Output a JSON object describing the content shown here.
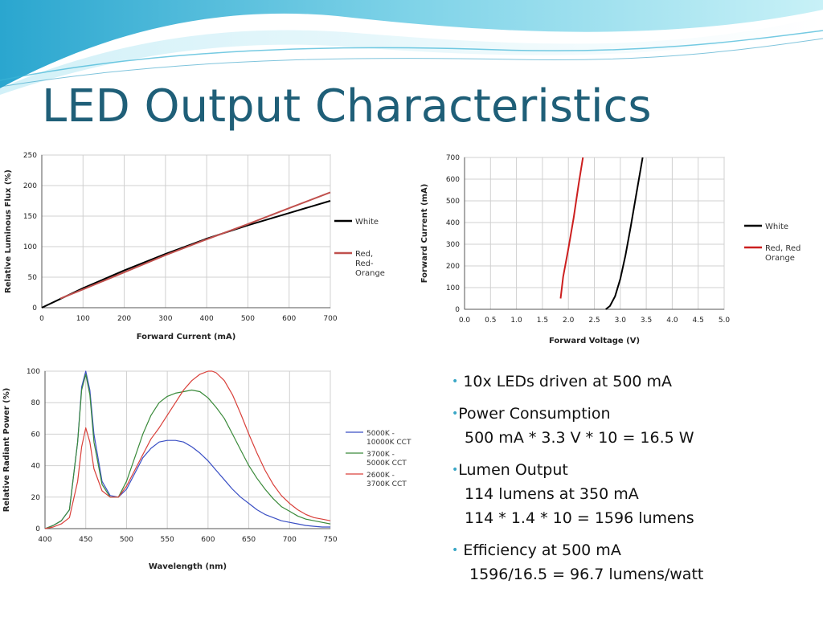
{
  "slide": {
    "title": "LED Output Characteristics",
    "colors": {
      "title": "#1f5f78",
      "bullet": "#3aa7c6",
      "banner_light": "#bfeef5",
      "banner_dark": "#3ab3d6"
    }
  },
  "bullets": [
    {
      "head": "10x LEDs driven at 500 mA",
      "lines": []
    },
    {
      "head": "Power Consumption",
      "lines": [
        "500 mA * 3.3 V * 10 = 16.5 W"
      ]
    },
    {
      "head": "Lumen Output",
      "lines": [
        "114 lumens at 350 mA",
        "114 * 1.4 * 10 = 1596 lumens"
      ]
    },
    {
      "head": "Efficiency at 500 mA",
      "lines": [
        "1596/16.5 = 96.7 lumens/watt"
      ]
    }
  ],
  "chart_data": [
    {
      "id": "flux",
      "type": "line",
      "xlabel": "Forward Current (mA)",
      "ylabel": "Relative Luminous Flux (%)",
      "xlim": [
        0,
        700
      ],
      "ylim": [
        0,
        250
      ],
      "xticks": [
        0,
        100,
        200,
        300,
        400,
        500,
        600,
        700
      ],
      "yticks": [
        0,
        50,
        100,
        150,
        200,
        250
      ],
      "grid": true,
      "legend_position": "right",
      "series": [
        {
          "name": "White",
          "color": "#000000",
          "x": [
            0,
            100,
            200,
            300,
            400,
            500,
            600,
            700
          ],
          "y": [
            0,
            32,
            61,
            88,
            113,
            135,
            155,
            175
          ]
        },
        {
          "name": "Red, Red-Orange",
          "color": "#c0504d",
          "x": [
            45,
            100,
            200,
            300,
            400,
            500,
            600,
            700
          ],
          "y": [
            15,
            30,
            58,
            86,
            112,
            137,
            163,
            189
          ]
        }
      ]
    },
    {
      "id": "iv",
      "type": "line",
      "xlabel": "Forward Voltage (V)",
      "ylabel": "Forward Current (mA)",
      "xlim": [
        0,
        5
      ],
      "ylim": [
        0,
        700
      ],
      "xticks": [
        0.0,
        0.5,
        1.0,
        1.5,
        2.0,
        2.5,
        3.0,
        3.5,
        4.0,
        4.5,
        5.0
      ],
      "xtick_labels": [
        "0.0",
        "0.5",
        "1.0",
        "1.5",
        "2.0",
        "2.5",
        "3.0",
        "3.5",
        "4.0",
        "4.5",
        "5.0"
      ],
      "yticks": [
        0,
        100,
        200,
        300,
        400,
        500,
        600,
        700
      ],
      "grid": true,
      "legend_position": "right",
      "series": [
        {
          "name": "White",
          "color": "#000000",
          "x": [
            2.72,
            2.8,
            2.9,
            3.0,
            3.1,
            3.2,
            3.3,
            3.43
          ],
          "y": [
            0,
            15,
            60,
            140,
            250,
            380,
            520,
            700
          ]
        },
        {
          "name": "Red, Red Orange",
          "color": "#cc1f1f",
          "x": [
            1.85,
            1.9,
            2.0,
            2.1,
            2.2,
            2.28
          ],
          "y": [
            50,
            150,
            280,
            420,
            580,
            700
          ]
        }
      ]
    },
    {
      "id": "spectrum",
      "type": "line",
      "xlabel": "Wavelength (nm)",
      "ylabel": "Relative Radiant Power (%)",
      "xlim": [
        400,
        750
      ],
      "ylim": [
        0,
        100
      ],
      "xticks": [
        400,
        450,
        500,
        550,
        600,
        650,
        700,
        750
      ],
      "yticks": [
        0,
        20,
        40,
        60,
        80,
        100
      ],
      "grid": true,
      "legend_position": "right",
      "series": [
        {
          "name": "5000K - 10000K CCT",
          "color": "#3a4fc4",
          "x": [
            400,
            410,
            420,
            430,
            440,
            445,
            450,
            455,
            460,
            470,
            480,
            490,
            500,
            510,
            520,
            530,
            540,
            550,
            560,
            570,
            580,
            590,
            600,
            610,
            620,
            630,
            640,
            650,
            660,
            670,
            680,
            690,
            700,
            710,
            720,
            730,
            740,
            750
          ],
          "y": [
            0,
            2,
            5,
            12,
            55,
            90,
            100,
            88,
            60,
            30,
            21,
            20,
            25,
            35,
            45,
            51,
            55,
            56,
            56,
            55,
            52,
            48,
            43,
            37,
            31,
            25,
            20,
            16,
            12,
            9,
            7,
            5,
            4,
            3,
            2,
            1.5,
            1,
            1
          ]
        },
        {
          "name": "3700K - 5000K CCT",
          "color": "#3a8a3a",
          "x": [
            400,
            410,
            420,
            430,
            440,
            445,
            450,
            455,
            460,
            470,
            480,
            490,
            500,
            510,
            520,
            530,
            540,
            550,
            560,
            570,
            580,
            590,
            600,
            610,
            620,
            630,
            640,
            650,
            660,
            670,
            680,
            690,
            700,
            710,
            720,
            730,
            740,
            750
          ],
          "y": [
            0,
            2,
            5,
            12,
            55,
            88,
            98,
            85,
            55,
            28,
            20,
            20,
            30,
            45,
            60,
            72,
            80,
            84,
            86,
            87,
            88,
            87,
            83,
            77,
            70,
            60,
            50,
            40,
            32,
            25,
            19,
            14,
            11,
            8,
            6,
            5,
            4,
            3
          ]
        },
        {
          "name": "2600K - 3700K CCT",
          "color": "#d9403a",
          "x": [
            400,
            410,
            420,
            430,
            440,
            445,
            450,
            455,
            460,
            470,
            480,
            490,
            500,
            510,
            520,
            530,
            540,
            550,
            560,
            570,
            580,
            590,
            600,
            605,
            610,
            620,
            630,
            640,
            650,
            660,
            670,
            680,
            690,
            700,
            710,
            720,
            730,
            740,
            750
          ],
          "y": [
            0,
            1,
            3,
            7,
            30,
            52,
            64,
            55,
            38,
            24,
            20,
            20,
            27,
            37,
            47,
            57,
            64,
            72,
            80,
            88,
            94,
            98,
            100,
            100,
            99,
            94,
            85,
            73,
            60,
            48,
            37,
            28,
            21,
            16,
            12,
            9,
            7,
            6,
            5
          ]
        }
      ]
    }
  ]
}
